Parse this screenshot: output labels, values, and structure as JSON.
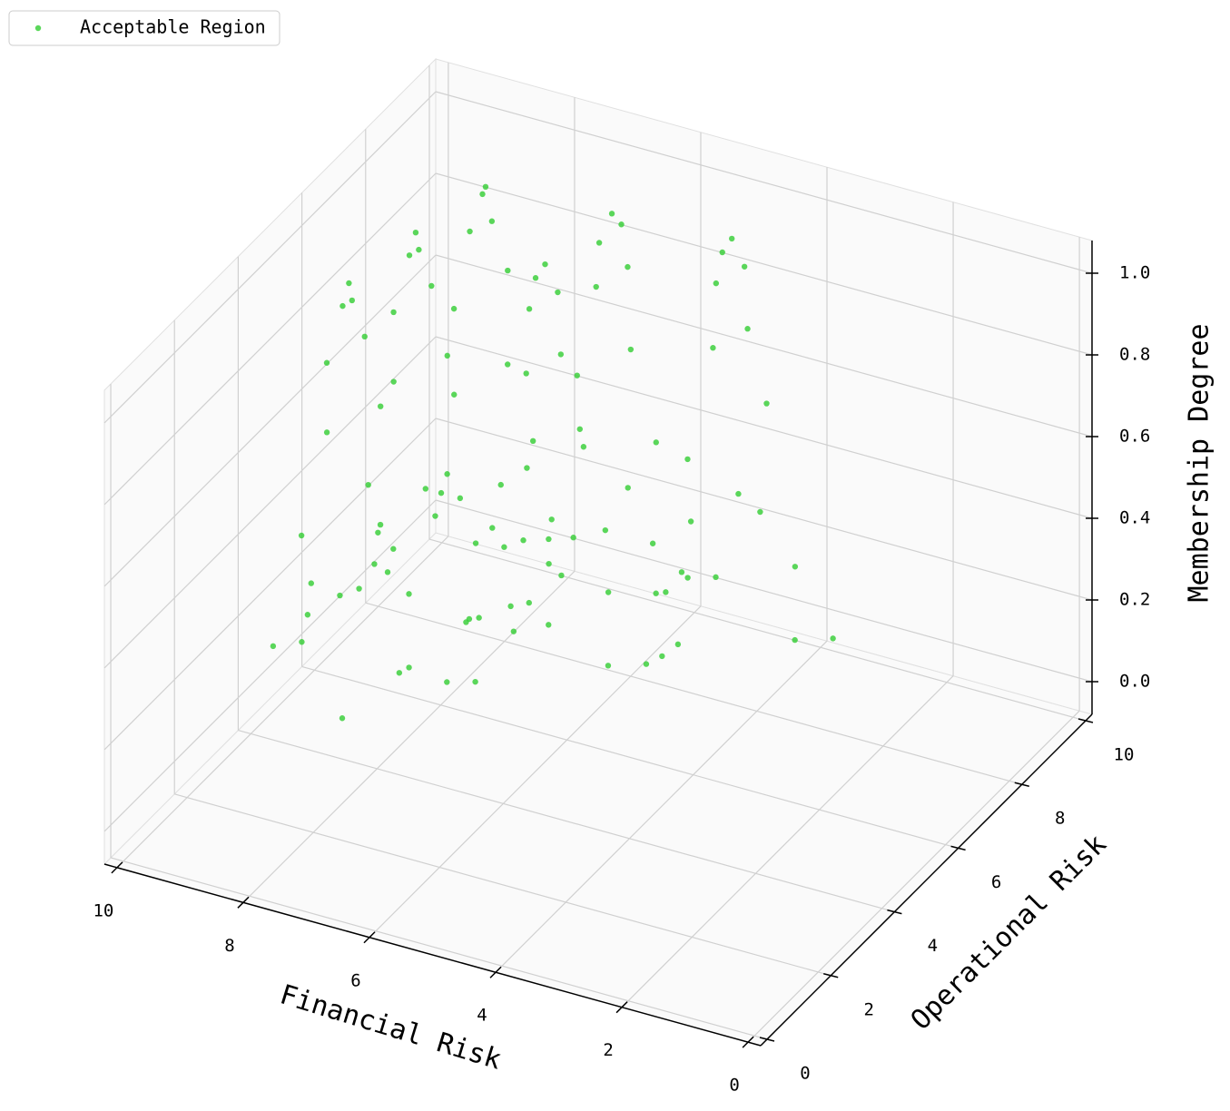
{
  "chart_data": {
    "type": "scatter3d",
    "x_label": "Financial Risk",
    "y_label": "Operational Risk",
    "z_label": "Membership Degree",
    "xlim": [
      -0.2,
      10.2
    ],
    "ylim": [
      -0.2,
      10.2
    ],
    "zlim": [
      -0.08,
      1.08
    ],
    "xticks": [
      0,
      2,
      4,
      6,
      8,
      10
    ],
    "yticks": [
      0,
      2,
      4,
      6,
      8,
      10
    ],
    "zticks": [
      {
        "value": 0,
        "label": "0.0"
      },
      0.2,
      0.4,
      0.6,
      0.8,
      {
        "value": 1,
        "label": "1.0"
      }
    ],
    "grid": true,
    "legend_position": "upper left",
    "series": [
      {
        "name": "Acceptable Region",
        "color": "#32cd32",
        "x": [
          8.9,
          8.8,
          9.05,
          8.65,
          9.2,
          8.5,
          9.35,
          8.3,
          9.5,
          8.1,
          9.7,
          7.9,
          10.0,
          8.6,
          9.1,
          7.6,
          9.95,
          8.4,
          8.7,
          8.6,
          8.85,
          8.45,
          9.0,
          8.3,
          9.15,
          8.1,
          9.3,
          7.9,
          9.5,
          7.7,
          9.8,
          8.4,
          8.9,
          7.4,
          9.9,
          8.2,
          8.4,
          8.5,
          8.25,
          8.65,
          8.1,
          8.8,
          7.95,
          9.0,
          7.8,
          9.2,
          7.6,
          9.4,
          7.3,
          8.7,
          8.2,
          9.7,
          7.1,
          8.9,
          6.7,
          6.8,
          6.55,
          6.95,
          6.4,
          7.1,
          6.25,
          7.3,
          6.1,
          7.5,
          5.9,
          7.7,
          5.6,
          7.0,
          6.5,
          8.0,
          5.4,
          7.2,
          6.5,
          6.4,
          6.65,
          6.25,
          6.8,
          6.1,
          6.95,
          5.9,
          7.1,
          5.7,
          7.3,
          5.5,
          7.6,
          6.2,
          6.7,
          5.2,
          7.8,
          6.0,
          4.7,
          4.8,
          4.55,
          4.95,
          4.4,
          5.1,
          4.25,
          5.3,
          4.1,
          5.5,
          3.9,
          5.7,
          3.6,
          5.0,
          4.5,
          6.0,
          3.4,
          5.2
        ],
        "y": [
          4.9,
          4.8,
          5.0,
          4.9,
          4.8,
          5.1,
          5.1,
          4.7,
          4.6,
          5.2,
          5.3,
          4.5,
          4.7,
          5.7,
          4.0,
          5.4,
          5.5,
          3.7,
          6.6,
          6.5,
          6.7,
          6.6,
          6.5,
          6.8,
          6.8,
          6.4,
          6.3,
          6.9,
          7.0,
          6.2,
          6.4,
          7.4,
          5.7,
          7.1,
          7.2,
          5.4,
          8.2,
          8.3,
          8.1,
          8.2,
          8.3,
          8.0,
          8.0,
          8.4,
          8.5,
          7.9,
          7.8,
          8.6,
          8.4,
          7.4,
          9.1,
          7.7,
          7.6,
          9.4,
          6.7,
          6.6,
          6.8,
          6.7,
          6.6,
          6.9,
          6.9,
          6.5,
          6.4,
          7.0,
          7.1,
          6.3,
          6.5,
          7.5,
          5.8,
          7.2,
          7.3,
          5.5,
          8.4,
          8.5,
          8.3,
          8.4,
          8.5,
          8.2,
          8.2,
          8.6,
          8.7,
          8.1,
          8.0,
          8.8,
          8.6,
          7.6,
          9.3,
          7.9,
          7.8,
          9.6,
          8.6,
          8.5,
          8.7,
          8.6,
          8.5,
          8.8,
          8.8,
          8.4,
          8.3,
          8.9,
          9.0,
          8.2,
          8.4,
          9.4,
          7.7,
          9.1,
          9.2,
          7.4
        ],
        "z": [
          1.0,
          0.97,
          0.93,
          0.88,
          0.8,
          0.7,
          0.6,
          0.45,
          0.38,
          0.25,
          0.2,
          0.12,
          0.08,
          0.3,
          0.25,
          0.04,
          0.03,
          0.05,
          1.0,
          0.97,
          0.93,
          0.88,
          0.8,
          0.7,
          0.6,
          0.45,
          0.38,
          0.25,
          0.2,
          0.12,
          0.08,
          0.3,
          0.25,
          0.04,
          0.03,
          0.05,
          1.0,
          0.97,
          0.93,
          0.88,
          0.8,
          0.7,
          0.6,
          0.45,
          0.38,
          0.25,
          0.2,
          0.12,
          0.08,
          0.3,
          0.25,
          0.04,
          0.03,
          0.05,
          1.0,
          0.97,
          0.93,
          0.88,
          0.8,
          0.7,
          0.6,
          0.45,
          0.38,
          0.25,
          0.2,
          0.12,
          0.08,
          0.3,
          0.25,
          0.04,
          0.03,
          0.05,
          1.0,
          0.97,
          0.93,
          0.88,
          0.8,
          0.7,
          0.6,
          0.45,
          0.38,
          0.25,
          0.2,
          0.12,
          0.08,
          0.3,
          0.25,
          0.04,
          0.03,
          0.05,
          1.0,
          0.97,
          0.93,
          0.88,
          0.8,
          0.7,
          0.6,
          0.45,
          0.38,
          0.25,
          0.2,
          0.12,
          0.08,
          0.3,
          0.25,
          0.04,
          0.03,
          0.05
        ]
      }
    ]
  }
}
